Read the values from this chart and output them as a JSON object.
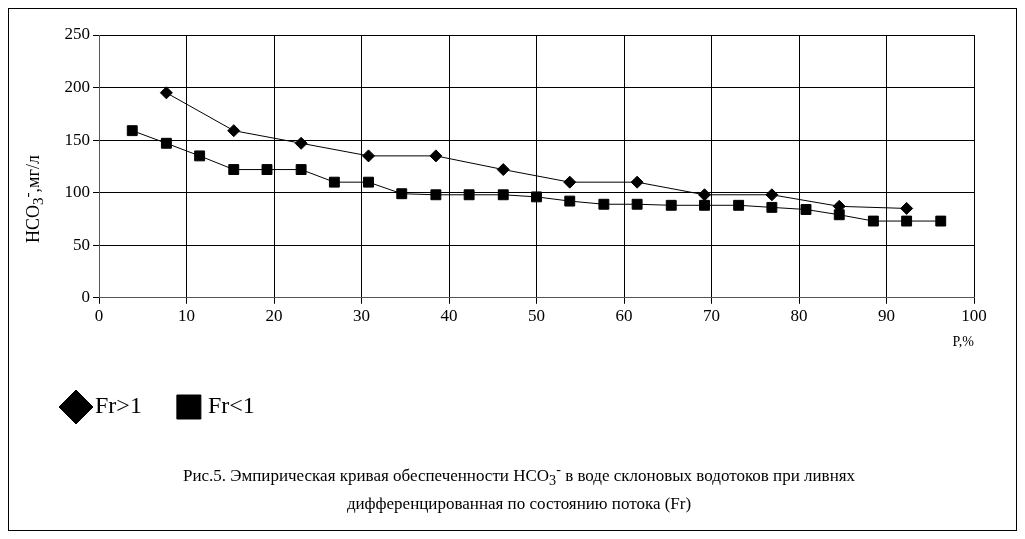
{
  "chart_data": {
    "type": "line",
    "title": "Рис.5. Эмпирическая кривая обеспеченности HCO$_{3}$$^{-}$ в воде  склоновых водотоков при ливнях дифференцированная по состоянию потока (Fr)",
    "xlabel": "P,%",
    "ylabel": "HCO$_{3}$$^{-}$,мг/л",
    "xlim": [
      0,
      100
    ],
    "xticks": [
      0,
      10,
      20,
      30,
      40,
      50,
      60,
      70,
      80,
      90,
      100
    ],
    "ylim": [
      0,
      250
    ],
    "yticks": [
      0,
      50,
      100,
      150,
      200,
      250
    ],
    "grid": true,
    "legend": "bottom left",
    "series": [
      {
        "name": "Fr>1",
        "color": "#000000",
        "marker": "diamond",
        "x": [
          7.7,
          15.4,
          23.1,
          30.8,
          38.5,
          46.2,
          53.8,
          61.5,
          69.2,
          76.9,
          84.6,
          92.3
        ],
        "values": [
          195,
          159,
          147,
          135,
          135,
          122,
          110,
          110,
          98,
          98,
          87,
          85
        ]
      },
      {
        "name": "Fr<1",
        "color": "#000000",
        "marker": "square",
        "x": [
          3.8,
          7.7,
          11.5,
          15.4,
          19.2,
          23.1,
          26.9,
          30.8,
          34.6,
          38.5,
          42.3,
          46.2,
          50,
          53.8,
          57.7,
          61.5,
          65.4,
          69.2,
          73.1,
          76.9,
          80.8,
          84.6,
          88.5,
          92.3,
          96.2
        ],
        "values": [
          159,
          147,
          135,
          122,
          122,
          122,
          110,
          110,
          99,
          98,
          98,
          98,
          96,
          92,
          89,
          89,
          88,
          88,
          88,
          86,
          84,
          79,
          73,
          73,
          73
        ]
      }
    ]
  }
}
